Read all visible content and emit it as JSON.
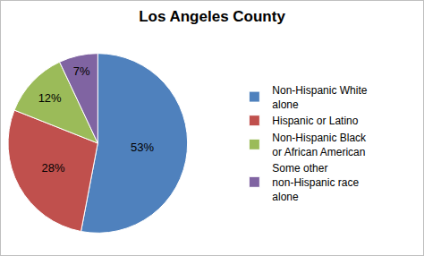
{
  "chart_data": {
    "type": "pie",
    "title": "Los Angeles County",
    "categories": [
      "Non-Hispanic White alone",
      "Hispanic or Latino",
      "Non-Hispanic Black or African American",
      "Some other non-Hispanic race alone"
    ],
    "values": [
      53,
      28,
      12,
      7
    ],
    "value_labels": [
      "53%",
      "28%",
      "12%",
      "7%"
    ],
    "colors": [
      "#4f81bd",
      "#c0504d",
      "#9bbb59",
      "#8064a2"
    ],
    "data_labels": true,
    "legend": "right"
  }
}
